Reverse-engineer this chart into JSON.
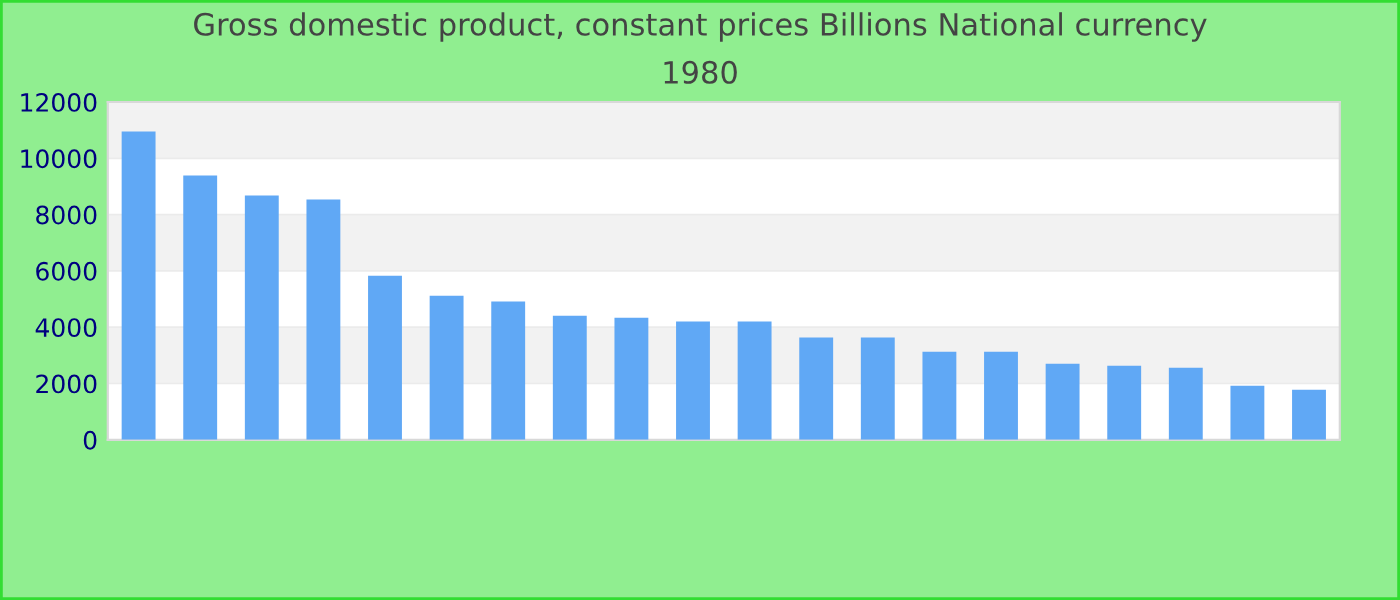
{
  "chart_data": {
    "type": "bar",
    "title": "Gross domestic product, constant prices Billions National currency",
    "subtitle": "1980",
    "categories": [
      null,
      null,
      null,
      null,
      null,
      null,
      null,
      null,
      null,
      null,
      null,
      null,
      null,
      null,
      null,
      null,
      null,
      null,
      null,
      null
    ],
    "values": [
      10950,
      9390,
      8680,
      8540,
      5830,
      5120,
      4910,
      4410,
      4340,
      4200,
      4200,
      3630,
      3630,
      3130,
      3130,
      2700,
      2630,
      2560,
      1920,
      1780
    ],
    "color": "#60a8f5",
    "ylim": [
      0,
      12000
    ],
    "yticks": [
      0,
      2000,
      4000,
      6000,
      8000,
      10000,
      12000
    ],
    "grid": "y",
    "legend": false
  }
}
